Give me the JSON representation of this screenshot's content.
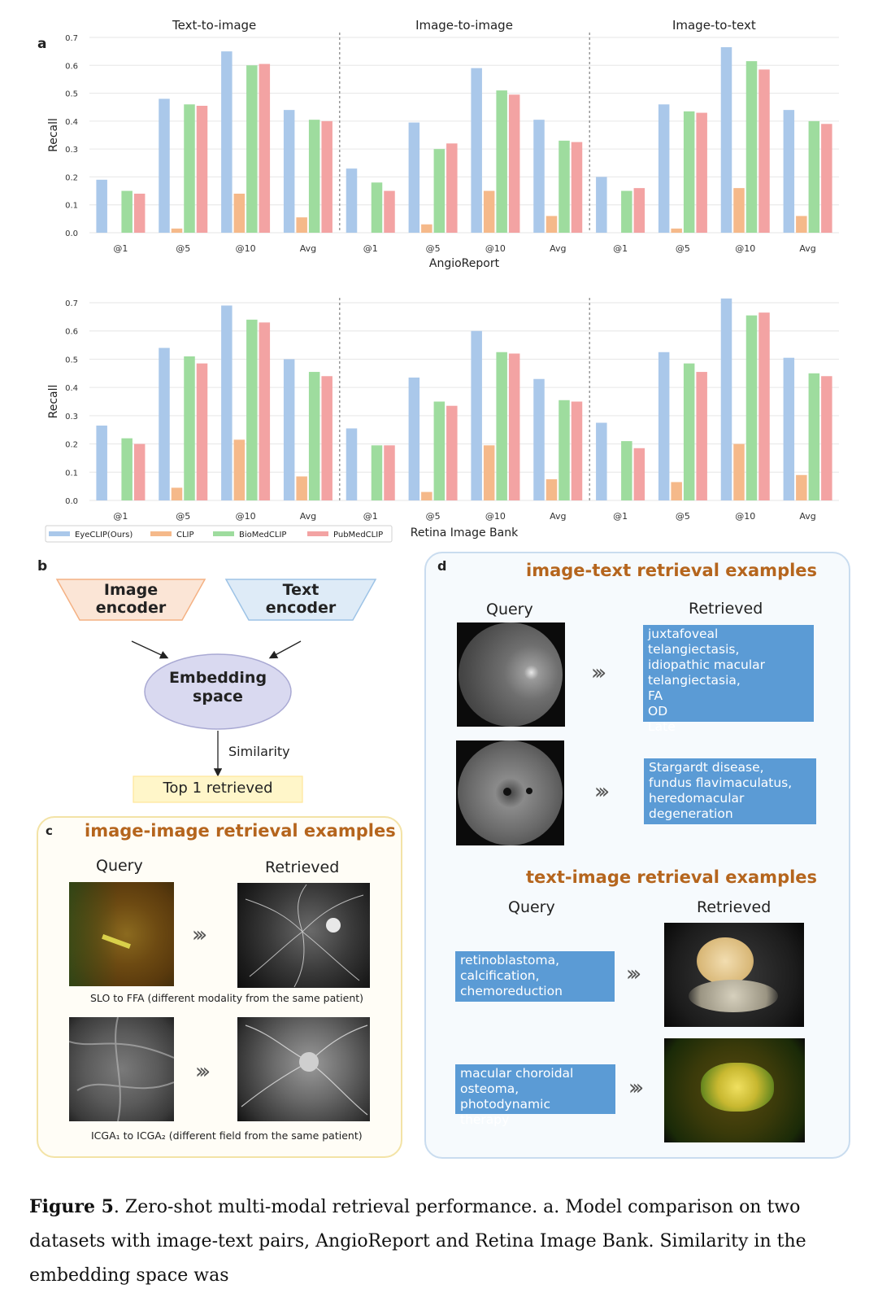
{
  "panel_a_letter": "a",
  "panel_b_letter": "b",
  "panel_c_letter": "c",
  "panel_d_letter": "d",
  "chart_data": [
    {
      "type": "bar",
      "dataset": "AngioReport",
      "ylabel": "Recall",
      "ylim": [
        0,
        0.7
      ],
      "yticks": [
        "0.0",
        "0.1",
        "0.2",
        "0.3",
        "0.4",
        "0.5",
        "0.6",
        "0.7"
      ],
      "groups": [
        "Text-to-image",
        "Image-to-image",
        "Image-to-text"
      ],
      "categories": [
        "@1",
        "@5",
        "@10",
        "Avg"
      ],
      "series": [
        {
          "name": "EyeCLIP(Ours)",
          "color": "#aac8ea",
          "values": [
            [
              0.19,
              0.48,
              0.65,
              0.44
            ],
            [
              0.23,
              0.395,
              0.59,
              0.405
            ],
            [
              0.2,
              0.46,
              0.665,
              0.44
            ]
          ]
        },
        {
          "name": "CLIP",
          "color": "#f5b98a",
          "values": [
            [
              0.0,
              0.015,
              0.14,
              0.055
            ],
            [
              0.0,
              0.03,
              0.15,
              0.06
            ],
            [
              0.0,
              0.015,
              0.16,
              0.06
            ]
          ]
        },
        {
          "name": "BioMedCLIP",
          "color": "#9edc9e",
          "values": [
            [
              0.15,
              0.46,
              0.6,
              0.405
            ],
            [
              0.18,
              0.3,
              0.51,
              0.33
            ],
            [
              0.15,
              0.435,
              0.615,
              0.4
            ]
          ]
        },
        {
          "name": "PubMedCLIP",
          "color": "#f3a3a3",
          "values": [
            [
              0.14,
              0.455,
              0.605,
              0.4
            ],
            [
              0.15,
              0.32,
              0.495,
              0.325
            ],
            [
              0.16,
              0.43,
              0.585,
              0.39
            ]
          ]
        }
      ]
    },
    {
      "type": "bar",
      "dataset": "Retina Image Bank",
      "ylabel": "Recall",
      "ylim": [
        0,
        0.7
      ],
      "yticks": [
        "0.0",
        "0.1",
        "0.2",
        "0.3",
        "0.4",
        "0.5",
        "0.6",
        "0.7"
      ],
      "groups": [
        "Text-to-image",
        "Image-to-image",
        "Image-to-text"
      ],
      "categories": [
        "@1",
        "@5",
        "@10",
        "Avg"
      ],
      "series": [
        {
          "name": "EyeCLIP(Ours)",
          "color": "#aac8ea",
          "values": [
            [
              0.265,
              0.54,
              0.69,
              0.5
            ],
            [
              0.255,
              0.435,
              0.6,
              0.43
            ],
            [
              0.275,
              0.525,
              0.715,
              0.505
            ]
          ]
        },
        {
          "name": "CLIP",
          "color": "#f5b98a",
          "values": [
            [
              0.0,
              0.045,
              0.215,
              0.085
            ],
            [
              0.0,
              0.03,
              0.195,
              0.075
            ],
            [
              0.0,
              0.065,
              0.2,
              0.09
            ]
          ]
        },
        {
          "name": "BioMedCLIP",
          "color": "#9edc9e",
          "values": [
            [
              0.22,
              0.51,
              0.64,
              0.455
            ],
            [
              0.195,
              0.35,
              0.525,
              0.355
            ],
            [
              0.21,
              0.485,
              0.655,
              0.45
            ]
          ]
        },
        {
          "name": "PubMedCLIP",
          "color": "#f3a3a3",
          "values": [
            [
              0.2,
              0.485,
              0.63,
              0.44
            ],
            [
              0.195,
              0.335,
              0.52,
              0.35
            ],
            [
              0.185,
              0.455,
              0.665,
              0.44
            ]
          ]
        }
      ]
    }
  ],
  "diagram_b": {
    "image_encoder": [
      "Image",
      "encoder"
    ],
    "text_encoder": [
      "Text",
      "encoder"
    ],
    "embedding": [
      "Embedding",
      "space"
    ],
    "similarity": "Similarity",
    "top1": "Top 1 retrieved"
  },
  "panel_c": {
    "title": "image-image retrieval examples",
    "query_label": "Query",
    "retrieved_label": "Retrieved",
    "example1_caption": "SLO to FFA (different modality from the same patient)",
    "example2_caption": "ICGA₁ to ICGA₂ (different field from the same patient)"
  },
  "panel_d": {
    "title1": "image-text retrieval examples",
    "query_label": "Query",
    "retrieved_label": "Retrieved",
    "it_text1": [
      "juxtafoveal telangiectasis,",
      "idiopathic macular",
      "telangiectasia,",
      "FA",
      "OD",
      "Late"
    ],
    "it_text2": [
      "Stargardt disease,",
      "fundus flavimaculatus,",
      "heredomacular",
      "degeneration"
    ],
    "title2": "text-image retrieval examples",
    "ti_text1": [
      "retinoblastoma,",
      "calcification,",
      "chemoreduction"
    ],
    "ti_text2": [
      "macular choroidal",
      "osteoma, photodynamic",
      "therapy"
    ]
  },
  "arrow_glyph": "›››",
  "figure_caption": {
    "label": "Figure 5",
    "text": ". Zero-shot multi-modal retrieval performance. a. Model comparison on two datasets with image-text pairs, AngioReport and Retina Image Bank. Similarity in the embedding space was"
  }
}
